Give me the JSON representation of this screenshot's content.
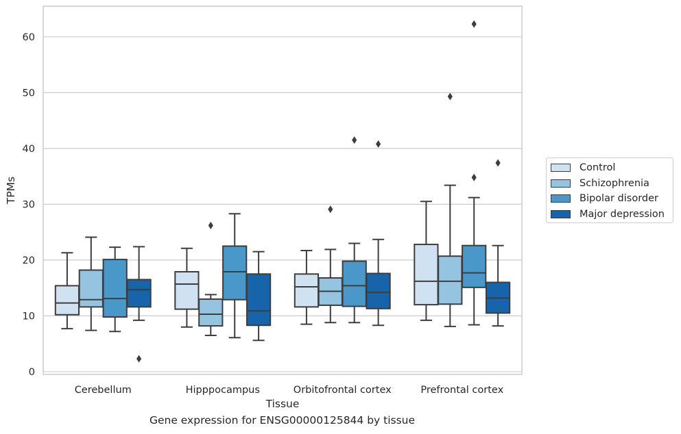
{
  "caption": "Gene expression for ENSG00000125844 by tissue",
  "chart_data": {
    "type": "box",
    "xlabel": "Tissue",
    "ylabel": "TPMs",
    "ylim": [
      -0.5,
      65.5
    ],
    "yticks": [
      0,
      10,
      20,
      30,
      40,
      50,
      60
    ],
    "grid": "horizontal",
    "legend_position": "right",
    "categories": [
      "Cerebellum",
      "Hipppocampus",
      "Orbitofrontal cortex",
      "Prefrontal cortex"
    ],
    "series": [
      {
        "name": "Control",
        "color": "#d0e1f2",
        "boxes": [
          {
            "whislo": 7.7,
            "q1": 10.2,
            "med": 12.3,
            "q3": 15.4,
            "whishi": 21.3,
            "fliers": []
          },
          {
            "whislo": 8.0,
            "q1": 11.2,
            "med": 15.7,
            "q3": 17.9,
            "whishi": 22.1,
            "fliers": []
          },
          {
            "whislo": 8.5,
            "q1": 11.6,
            "med": 15.2,
            "q3": 17.5,
            "whishi": 21.7,
            "fliers": []
          },
          {
            "whislo": 9.2,
            "q1": 12.0,
            "med": 16.2,
            "q3": 22.8,
            "whishi": 30.5,
            "fliers": []
          }
        ]
      },
      {
        "name": "Schizophrenia",
        "color": "#94c4df",
        "boxes": [
          {
            "whislo": 7.4,
            "q1": 11.6,
            "med": 12.9,
            "q3": 18.2,
            "whishi": 24.1,
            "fliers": []
          },
          {
            "whislo": 6.5,
            "q1": 8.2,
            "med": 10.3,
            "q3": 13.0,
            "whishi": 13.8,
            "fliers": [
              26.2
            ]
          },
          {
            "whislo": 8.8,
            "q1": 11.9,
            "med": 14.4,
            "q3": 16.8,
            "whishi": 21.9,
            "fliers": [
              29.1
            ]
          },
          {
            "whislo": 8.1,
            "q1": 12.1,
            "med": 16.2,
            "q3": 20.7,
            "whishi": 33.4,
            "fliers": [
              49.3
            ]
          }
        ]
      },
      {
        "name": "Bipolar disorder",
        "color": "#4a98c9",
        "boxes": [
          {
            "whislo": 7.2,
            "q1": 9.8,
            "med": 13.1,
            "q3": 20.1,
            "whishi": 22.3,
            "fliers": []
          },
          {
            "whislo": 6.1,
            "q1": 12.9,
            "med": 17.9,
            "q3": 22.5,
            "whishi": 28.3,
            "fliers": []
          },
          {
            "whislo": 8.8,
            "q1": 11.7,
            "med": 15.4,
            "q3": 19.8,
            "whishi": 23.0,
            "fliers": [
              41.5
            ]
          },
          {
            "whislo": 8.4,
            "q1": 15.1,
            "med": 17.7,
            "q3": 22.6,
            "whishi": 31.2,
            "fliers": [
              34.8,
              62.3
            ]
          }
        ]
      },
      {
        "name": "Major depression",
        "color": "#1764ab",
        "boxes": [
          {
            "whislo": 9.2,
            "q1": 11.6,
            "med": 14.7,
            "q3": 16.5,
            "whishi": 22.4,
            "fliers": [
              2.3
            ]
          },
          {
            "whislo": 5.6,
            "q1": 8.3,
            "med": 10.9,
            "q3": 17.5,
            "whishi": 21.5,
            "fliers": []
          },
          {
            "whislo": 8.3,
            "q1": 11.3,
            "med": 14.2,
            "q3": 17.6,
            "whishi": 23.7,
            "fliers": [
              40.8
            ]
          },
          {
            "whislo": 8.2,
            "q1": 10.5,
            "med": 13.2,
            "q3": 16.0,
            "whishi": 22.6,
            "fliers": [
              37.4
            ]
          }
        ]
      }
    ]
  }
}
